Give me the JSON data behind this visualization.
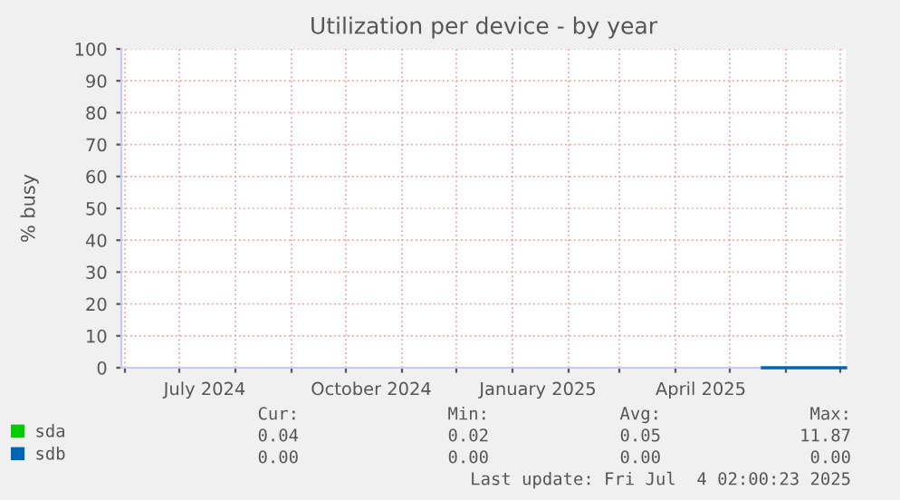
{
  "chart_data": {
    "type": "line",
    "title": "Utilization per device - by year",
    "ylabel": "% busy",
    "series": [
      {
        "name": "sda",
        "color": "#00cc00"
      },
      {
        "name": "sdb",
        "color": "#0066b3",
        "x": [
          "2025-05-19",
          "2025-06-01",
          "2025-06-15",
          "2025-07-01",
          "2025-07-04"
        ],
        "values": [
          0,
          0,
          0,
          0,
          0
        ]
      }
    ],
    "xlim": [
      "2024-05-30",
      "2025-07-04"
    ],
    "xticks": [
      {
        "value": "2024-06-01",
        "label": null
      },
      {
        "value": "2024-07-01",
        "label": null
      },
      {
        "value": "2024-07-15",
        "label": "July 2024"
      },
      {
        "value": "2024-08-01",
        "label": null
      },
      {
        "value": "2024-09-01",
        "label": null
      },
      {
        "value": "2024-10-01",
        "label": null
      },
      {
        "value": "2024-10-15",
        "label": "October 2024"
      },
      {
        "value": "2024-11-01",
        "label": null
      },
      {
        "value": "2024-12-01",
        "label": null
      },
      {
        "value": "2025-01-01",
        "label": null
      },
      {
        "value": "2025-01-15",
        "label": "January 2025"
      },
      {
        "value": "2025-02-01",
        "label": null
      },
      {
        "value": "2025-03-01",
        "label": null
      },
      {
        "value": "2025-04-01",
        "label": null
      },
      {
        "value": "2025-04-15",
        "label": "April 2025"
      },
      {
        "value": "2025-05-01",
        "label": null
      },
      {
        "value": "2025-06-01",
        "label": null
      },
      {
        "value": "2025-07-01",
        "label": null
      }
    ],
    "ylim": [
      0,
      100
    ],
    "yticks": [
      0,
      10,
      20,
      30,
      40,
      50,
      60,
      70,
      80,
      90,
      100
    ],
    "grid": true,
    "legend": "bottom left",
    "annotations": [
      "Cur:",
      "Min:",
      "Avg:",
      "Max:",
      "0.04",
      "0.02",
      "0.05",
      "11.87",
      "0.00",
      "0.00",
      "0.00",
      "0.00",
      "Last update: Fri Jul  4 02:00:23 2025"
    ]
  }
}
